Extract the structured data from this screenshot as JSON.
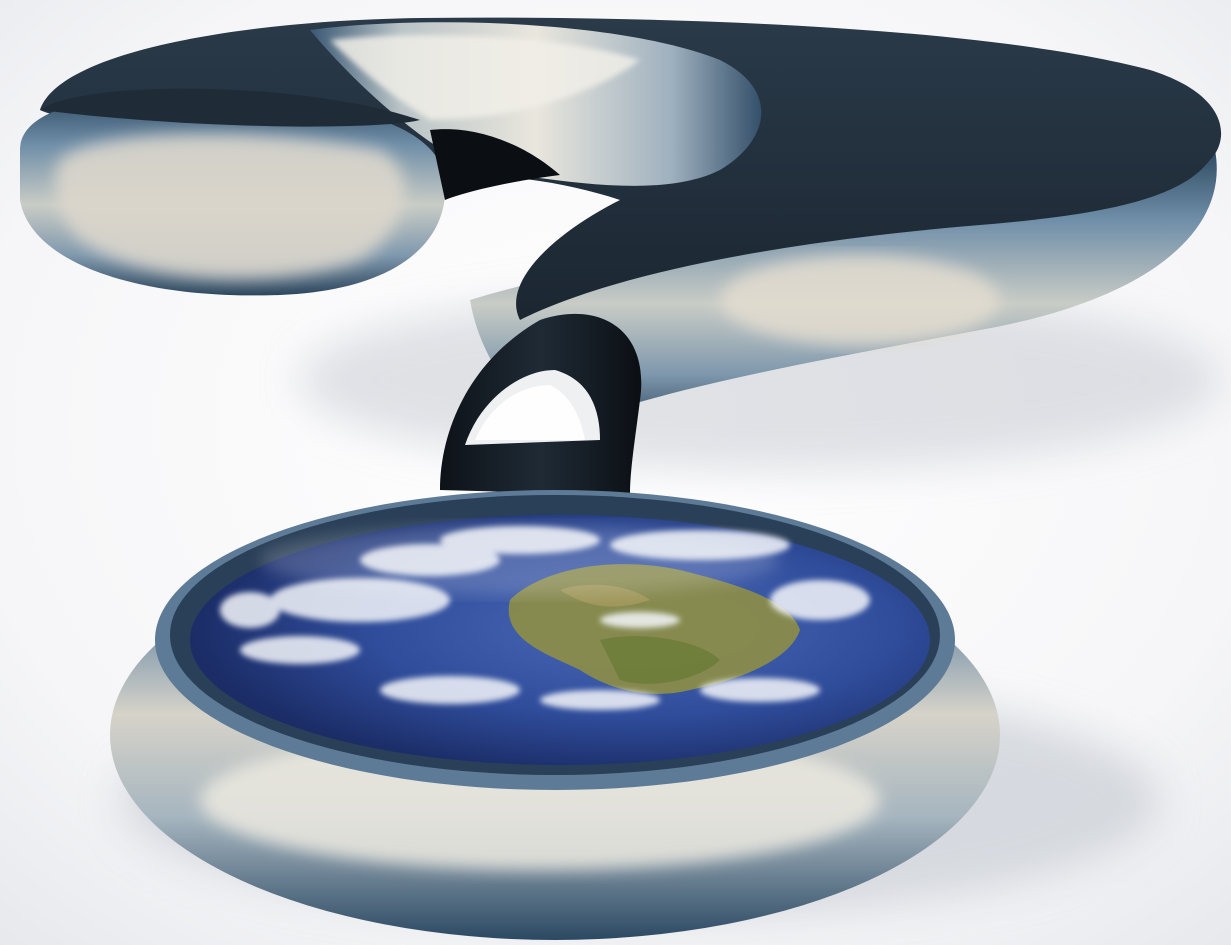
{
  "scene": {
    "subject": "question-mark-with-earth",
    "colors": {
      "background": "#ffffff",
      "shadow": "#c9ccd2",
      "metal_dark": "#1c2833",
      "metal_mid": "#3f5f7c",
      "metal_light": "#a9bccb",
      "highlight": "#f2f0ea",
      "ocean": "#2f4c9a",
      "land": "#8a8c4a",
      "cloud": "#f4f6fa"
    },
    "icons": [
      "question-mark",
      "earth-globe"
    ]
  }
}
